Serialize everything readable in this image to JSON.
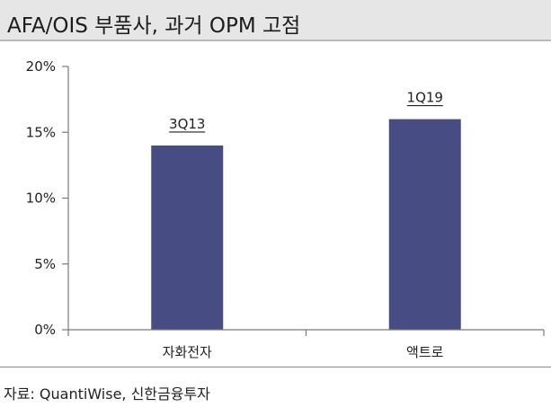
{
  "title": "AFA/OIS 부품사, 과거 OPM 고점",
  "source": "자료: QuantiWise, 신한금융투자",
  "chart_data": {
    "type": "bar",
    "categories": [
      "자화전자",
      "액트로"
    ],
    "values": [
      14,
      16
    ],
    "data_labels": [
      "3Q13",
      "1Q19"
    ],
    "ylim": [
      0,
      20
    ],
    "yticks": [
      0,
      5,
      10,
      15,
      20
    ],
    "ytick_labels": [
      "0%",
      "5%",
      "10%",
      "15%",
      "20%"
    ],
    "bar_color": "#474d82",
    "grid": false
  }
}
